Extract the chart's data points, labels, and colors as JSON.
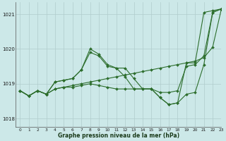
{
  "xlabel": "Graphe pression niveau de la mer (hPa)",
  "ylim": [
    1017.75,
    1021.35
  ],
  "xlim": [
    -0.5,
    23
  ],
  "yticks": [
    1018,
    1019,
    1020,
    1021
  ],
  "xticks": [
    0,
    1,
    2,
    3,
    4,
    5,
    6,
    7,
    8,
    9,
    10,
    11,
    12,
    13,
    14,
    15,
    16,
    17,
    18,
    19,
    20,
    21,
    22,
    23
  ],
  "bg_color": "#cce8e8",
  "grid_color": "#b0cccc",
  "line_color": "#2d6e2d",
  "s1_y": [
    1018.8,
    1018.65,
    1018.8,
    1018.7,
    1019.05,
    1019.1,
    1019.15,
    1019.4,
    1020.0,
    1019.85,
    1019.55,
    1019.45,
    1019.2,
    1018.85,
    1018.85,
    1018.85,
    1018.6,
    1018.4,
    1018.45,
    1019.6,
    1019.6,
    1021.05,
    1021.1,
    1021.15
  ],
  "s2_y": [
    1018.8,
    1018.65,
    1018.8,
    1018.7,
    1019.05,
    1019.1,
    1019.15,
    1019.4,
    1019.9,
    1019.8,
    1019.5,
    1019.45,
    1019.45,
    1019.15,
    1018.85,
    1018.85,
    1018.75,
    1018.75,
    1018.8,
    1019.5,
    1019.55,
    1019.8,
    1021.05,
    1021.15
  ],
  "s3_y": [
    1018.8,
    1018.65,
    1018.8,
    1018.7,
    1018.85,
    1018.9,
    1018.95,
    1019.0,
    1019.05,
    1019.1,
    1019.15,
    1019.2,
    1019.25,
    1019.3,
    1019.35,
    1019.4,
    1019.45,
    1019.5,
    1019.55,
    1019.6,
    1019.65,
    1019.75,
    1020.05,
    1021.15
  ],
  "s4_y": [
    1018.8,
    1018.65,
    1018.8,
    1018.7,
    1018.85,
    1018.9,
    1018.9,
    1018.95,
    1019.0,
    1018.95,
    1018.9,
    1018.85,
    1018.85,
    1018.85,
    1018.85,
    1018.85,
    1018.6,
    1018.4,
    1018.45,
    1018.7,
    1018.75,
    1019.55,
    1021.05,
    1021.15
  ]
}
